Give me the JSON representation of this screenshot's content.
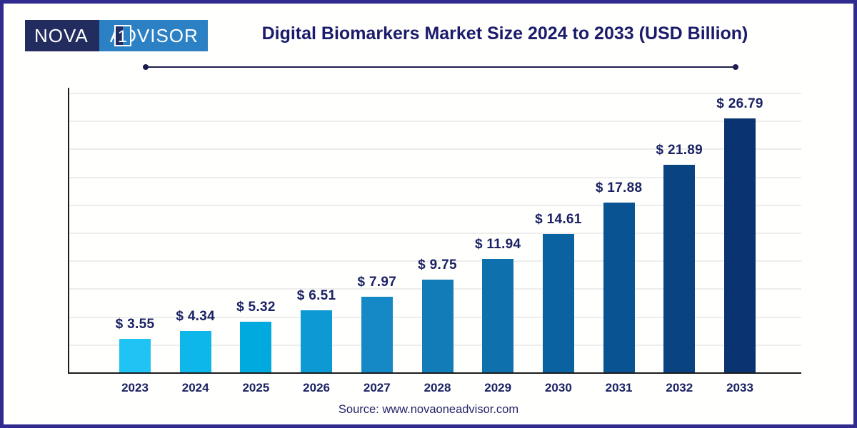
{
  "page": {
    "border_color": "#312b8f",
    "background_color": "#fffffd",
    "accent_navy": "#1b2264"
  },
  "logo": {
    "nova": "NOVA",
    "one": "1",
    "advisor": "ADVISOR",
    "navy_bg": "#222c5e",
    "blue_bg": "#2c80c4"
  },
  "header": {
    "title": "Digital Biomarkers Market Size 2024 to 2033 (USD Billion)"
  },
  "footer": {
    "source": "Source: www.novaoneadvisor.com"
  },
  "chart_data": {
    "type": "bar",
    "title": "Digital Biomarkers Market Size 2024 to 2033 (USD Billion)",
    "categories": [
      "2023",
      "2024",
      "2025",
      "2026",
      "2027",
      "2028",
      "2029",
      "2030",
      "2031",
      "2032",
      "2033"
    ],
    "values": [
      3.55,
      4.34,
      5.32,
      6.51,
      7.97,
      9.75,
      11.94,
      14.61,
      17.88,
      21.89,
      26.79
    ],
    "value_labels": [
      "$ 3.55",
      "$ 4.34",
      "$ 5.32",
      "$ 6.51",
      "$ 7.97",
      "$ 9.75",
      "$ 11.94",
      "$ 14.61",
      "$ 17.88",
      "$ 21.89",
      "$ 26.79"
    ],
    "bar_colors": [
      "#1fc4f4",
      "#0db7ea",
      "#00aade",
      "#0c99d4",
      "#1489c6",
      "#117cb8",
      "#0e70ac",
      "#0b62a1",
      "#0a5392",
      "#094480",
      "#0a3372"
    ],
    "xlabel": "",
    "ylabel": "",
    "ylim": [
      0,
      30
    ],
    "grid": true,
    "gridline_count": 10,
    "legend": "none",
    "unit": "USD Billion"
  }
}
